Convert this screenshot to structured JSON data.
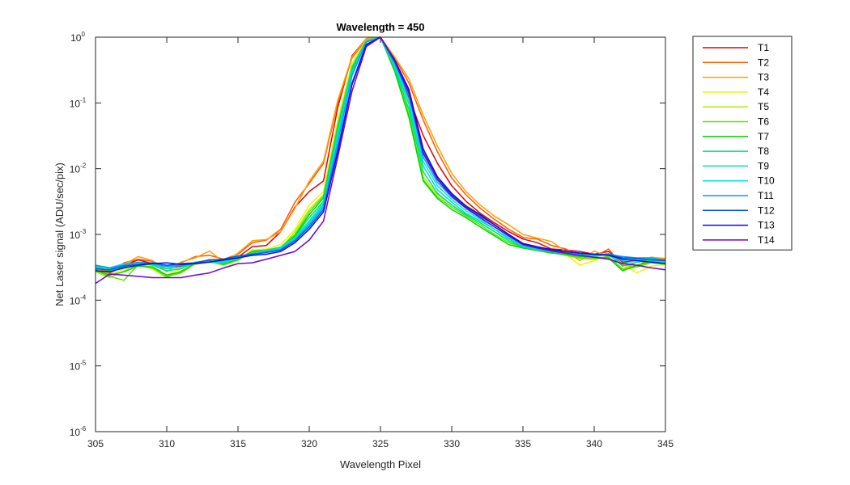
{
  "chart_data": {
    "type": "line",
    "title": "Wavelength = 450",
    "xlabel": "Wavelength Pixel",
    "ylabel": "Net Laser signal  (ADU/sec/pix)",
    "xlim": [
      305,
      345
    ],
    "ylim": [
      1e-06,
      1
    ],
    "yscale": "log",
    "xticks": [
      305,
      310,
      315,
      320,
      325,
      330,
      335,
      340,
      345
    ],
    "yticks": [
      {
        "value": 1e-06,
        "base": "10",
        "exp": "-6"
      },
      {
        "value": 1e-05,
        "base": "10",
        "exp": "-5"
      },
      {
        "value": 0.0001,
        "base": "10",
        "exp": "-4"
      },
      {
        "value": 0.001,
        "base": "10",
        "exp": "-3"
      },
      {
        "value": 0.01,
        "base": "10",
        "exp": "-2"
      },
      {
        "value": 0.1,
        "base": "10",
        "exp": "-1"
      },
      {
        "value": 1,
        "base": "10",
        "exp": "0"
      }
    ],
    "grid": false,
    "legend_position": "outside-right-top",
    "x": [
      305,
      306,
      307,
      308,
      309,
      310,
      311,
      312,
      313,
      314,
      315,
      316,
      317,
      318,
      319,
      320,
      321,
      322,
      323,
      324,
      325,
      326,
      327,
      328,
      329,
      330,
      331,
      332,
      333,
      334,
      335,
      336,
      337,
      338,
      339,
      340,
      341,
      342,
      343,
      344,
      345
    ],
    "series": [
      {
        "name": "T1",
        "color": "#e60000",
        "values": [
          0.0003,
          0.00028,
          0.00034,
          0.00041,
          0.00036,
          0.0003,
          0.00033,
          0.00036,
          0.0004,
          0.00039,
          0.00045,
          0.00065,
          0.00068,
          0.0011,
          0.0026,
          0.0045,
          0.0065,
          0.085,
          0.52,
          0.95,
          1.0,
          0.45,
          0.12,
          0.032,
          0.012,
          0.0055,
          0.0032,
          0.0021,
          0.0015,
          0.0011,
          0.00085,
          0.00075,
          0.0006,
          0.00058,
          0.00055,
          0.0005,
          0.00055,
          0.00038,
          0.0004,
          0.00042,
          0.0004
        ]
      },
      {
        "name": "T2",
        "color": "#ff5a00",
        "values": [
          0.00033,
          0.00026,
          0.00037,
          0.00042,
          0.00039,
          0.00032,
          0.00037,
          0.00046,
          0.00048,
          0.00042,
          0.0005,
          0.00075,
          0.00082,
          0.0012,
          0.0031,
          0.006,
          0.012,
          0.1,
          0.48,
          0.92,
          1.0,
          0.48,
          0.2,
          0.055,
          0.018,
          0.0072,
          0.004,
          0.0025,
          0.0017,
          0.0012,
          0.0009,
          0.00085,
          0.00068,
          0.0006,
          0.00048,
          0.00045,
          0.0006,
          0.00034,
          0.00032,
          0.00045,
          0.00042
        ]
      },
      {
        "name": "T3",
        "color": "#ffa000",
        "values": [
          0.00031,
          0.00025,
          0.00035,
          0.00046,
          0.0004,
          0.00027,
          0.00038,
          0.00044,
          0.00056,
          0.00038,
          0.00052,
          0.0008,
          0.00084,
          0.0011,
          0.0025,
          0.0065,
          0.013,
          0.11,
          0.5,
          0.95,
          1.0,
          0.5,
          0.23,
          0.065,
          0.022,
          0.0085,
          0.0045,
          0.0028,
          0.0019,
          0.0014,
          0.001,
          0.00088,
          0.00078,
          0.00055,
          0.0004,
          0.00056,
          0.00046,
          0.0003,
          0.00038,
          0.00045,
          0.00043
        ]
      },
      {
        "name": "T4",
        "color": "#f5f000",
        "values": [
          0.00029,
          0.00024,
          0.0003,
          0.00036,
          0.00032,
          0.00024,
          0.0003,
          0.00037,
          0.00042,
          0.00036,
          0.00041,
          0.00058,
          0.0006,
          0.0007,
          0.0012,
          0.0028,
          0.0045,
          0.055,
          0.4,
          0.9,
          1.0,
          0.38,
          0.1,
          0.02,
          0.0075,
          0.0042,
          0.0028,
          0.002,
          0.0014,
          0.00095,
          0.00072,
          0.00065,
          0.00058,
          0.0005,
          0.00034,
          0.0004,
          0.00048,
          0.00036,
          0.00026,
          0.00033,
          0.00035
        ]
      },
      {
        "name": "T5",
        "color": "#a8f000",
        "values": [
          0.00027,
          0.00022,
          0.00028,
          0.00034,
          0.0003,
          0.00022,
          0.00028,
          0.00035,
          0.00038,
          0.00034,
          0.0004,
          0.00055,
          0.00058,
          0.00062,
          0.0011,
          0.0024,
          0.004,
          0.048,
          0.36,
          0.9,
          1.0,
          0.35,
          0.07,
          0.0075,
          0.004,
          0.0028,
          0.002,
          0.0015,
          0.0011,
          0.0008,
          0.00066,
          0.0006,
          0.00055,
          0.0005,
          0.00043,
          0.00042,
          0.00045,
          0.0003,
          0.00034,
          0.00038,
          0.00036
        ]
      },
      {
        "name": "T6",
        "color": "#5ae600",
        "values": [
          0.00028,
          0.00023,
          0.0002,
          0.00035,
          0.00031,
          0.00023,
          0.00026,
          0.00036,
          0.0004,
          0.00036,
          0.00041,
          0.00056,
          0.00058,
          0.00064,
          0.001,
          0.0022,
          0.0038,
          0.045,
          0.34,
          0.88,
          1.0,
          0.32,
          0.065,
          0.0068,
          0.0037,
          0.0026,
          0.0019,
          0.0014,
          0.001,
          0.00075,
          0.00063,
          0.00058,
          0.00053,
          0.00048,
          0.00044,
          0.00043,
          0.00046,
          0.00029,
          0.00032,
          0.00037,
          0.00035
        ]
      },
      {
        "name": "T7",
        "color": "#0ad200",
        "values": [
          0.00029,
          0.00024,
          0.00027,
          0.00033,
          0.00032,
          0.00024,
          0.00027,
          0.00037,
          0.0004,
          0.00035,
          0.00042,
          0.00055,
          0.00057,
          0.00063,
          0.00095,
          0.002,
          0.0036,
          0.042,
          0.33,
          0.87,
          1.0,
          0.3,
          0.06,
          0.0065,
          0.0035,
          0.0024,
          0.0018,
          0.0013,
          0.00095,
          0.0007,
          0.00062,
          0.00057,
          0.00052,
          0.0005,
          0.00046,
          0.00045,
          0.00044,
          0.00028,
          0.00034,
          0.00039,
          0.00036
        ]
      },
      {
        "name": "T8",
        "color": "#00e07a",
        "values": [
          0.00032,
          0.00028,
          0.00032,
          0.00037,
          0.00034,
          0.00028,
          0.0003,
          0.00038,
          0.00039,
          0.00036,
          0.00045,
          0.00052,
          0.00058,
          0.00064,
          0.00092,
          0.0018,
          0.0032,
          0.04,
          0.35,
          0.88,
          1.0,
          0.33,
          0.08,
          0.009,
          0.0042,
          0.0028,
          0.002,
          0.0015,
          0.0011,
          0.0008,
          0.00064,
          0.00058,
          0.00054,
          0.00052,
          0.00048,
          0.00046,
          0.0005,
          0.00033,
          0.00038,
          0.0004,
          0.00037
        ]
      },
      {
        "name": "T9",
        "color": "#00e0b4",
        "values": [
          0.00033,
          0.0003,
          0.00034,
          0.00036,
          0.00035,
          0.0003,
          0.00032,
          0.00036,
          0.00038,
          0.00037,
          0.00043,
          0.0005,
          0.00056,
          0.00062,
          0.00088,
          0.0016,
          0.003,
          0.035,
          0.3,
          0.86,
          1.0,
          0.36,
          0.095,
          0.011,
          0.0048,
          0.0031,
          0.0021,
          0.0016,
          0.0012,
          0.00085,
          0.00066,
          0.0006,
          0.00055,
          0.00052,
          0.00049,
          0.00047,
          0.0005,
          0.00036,
          0.0004,
          0.00042,
          0.00038
        ]
      },
      {
        "name": "T10",
        "color": "#00e0e6",
        "values": [
          0.00034,
          0.00031,
          0.00036,
          0.00037,
          0.00036,
          0.00032,
          0.00034,
          0.00037,
          0.00039,
          0.00038,
          0.00044,
          0.0005,
          0.00055,
          0.0006,
          0.00085,
          0.0015,
          0.0028,
          0.03,
          0.28,
          0.85,
          1.0,
          0.38,
          0.11,
          0.013,
          0.0055,
          0.0034,
          0.0023,
          0.0017,
          0.0012,
          0.0009,
          0.00068,
          0.00062,
          0.00056,
          0.00053,
          0.0005,
          0.00048,
          0.00051,
          0.0004,
          0.00042,
          0.00043,
          0.00039
        ]
      },
      {
        "name": "T11",
        "color": "#00a0f0",
        "values": [
          0.00034,
          0.00031,
          0.00034,
          0.00038,
          0.00036,
          0.00033,
          0.00034,
          0.00036,
          0.00039,
          0.0004,
          0.00046,
          0.0005,
          0.00054,
          0.00059,
          0.00082,
          0.0014,
          0.0026,
          0.025,
          0.26,
          0.84,
          1.0,
          0.4,
          0.13,
          0.015,
          0.0062,
          0.0037,
          0.0025,
          0.0018,
          0.0013,
          0.00095,
          0.0007,
          0.00063,
          0.00057,
          0.00054,
          0.00051,
          0.00049,
          0.0005,
          0.00046,
          0.00044,
          0.00044,
          0.0004
        ]
      },
      {
        "name": "T12",
        "color": "#0055e6",
        "values": [
          0.0003,
          0.00029,
          0.00033,
          0.00035,
          0.00037,
          0.00034,
          0.00036,
          0.00037,
          0.00041,
          0.00042,
          0.00047,
          0.0005,
          0.00053,
          0.00058,
          0.0008,
          0.0013,
          0.0024,
          0.02,
          0.2,
          0.78,
          1.0,
          0.44,
          0.15,
          0.018,
          0.007,
          0.004,
          0.0026,
          0.0019,
          0.0014,
          0.001,
          0.00072,
          0.00064,
          0.00058,
          0.00055,
          0.00052,
          0.0005,
          0.00049,
          0.00044,
          0.00043,
          0.00041,
          0.0004
        ]
      },
      {
        "name": "T13",
        "color": "#0a0ae6",
        "values": [
          0.00028,
          0.00027,
          0.00031,
          0.00034,
          0.00036,
          0.00037,
          0.00035,
          0.00036,
          0.00038,
          0.00041,
          0.00044,
          0.00048,
          0.0005,
          0.00055,
          0.00075,
          0.0012,
          0.0022,
          0.018,
          0.19,
          0.76,
          1.0,
          0.45,
          0.16,
          0.02,
          0.0075,
          0.0042,
          0.0027,
          0.002,
          0.0014,
          0.001,
          0.00073,
          0.00065,
          0.00059,
          0.00055,
          0.00052,
          0.0005,
          0.00048,
          0.00042,
          0.0004,
          0.00038,
          0.00036
        ]
      },
      {
        "name": "T14",
        "color": "#6e00d7",
        "values": [
          0.00018,
          0.00025,
          0.00024,
          0.00023,
          0.00022,
          0.00022,
          0.00022,
          0.00024,
          0.00026,
          0.00031,
          0.00036,
          0.00037,
          0.00042,
          0.00048,
          0.00055,
          0.00082,
          0.0016,
          0.015,
          0.15,
          0.72,
          1.0,
          0.43,
          0.14,
          0.017,
          0.0068,
          0.0038,
          0.0025,
          0.0018,
          0.0013,
          0.00095,
          0.0007,
          0.00062,
          0.00056,
          0.00052,
          0.00048,
          0.00045,
          0.00042,
          0.00036,
          0.00034,
          0.00031,
          0.00029
        ]
      }
    ]
  }
}
